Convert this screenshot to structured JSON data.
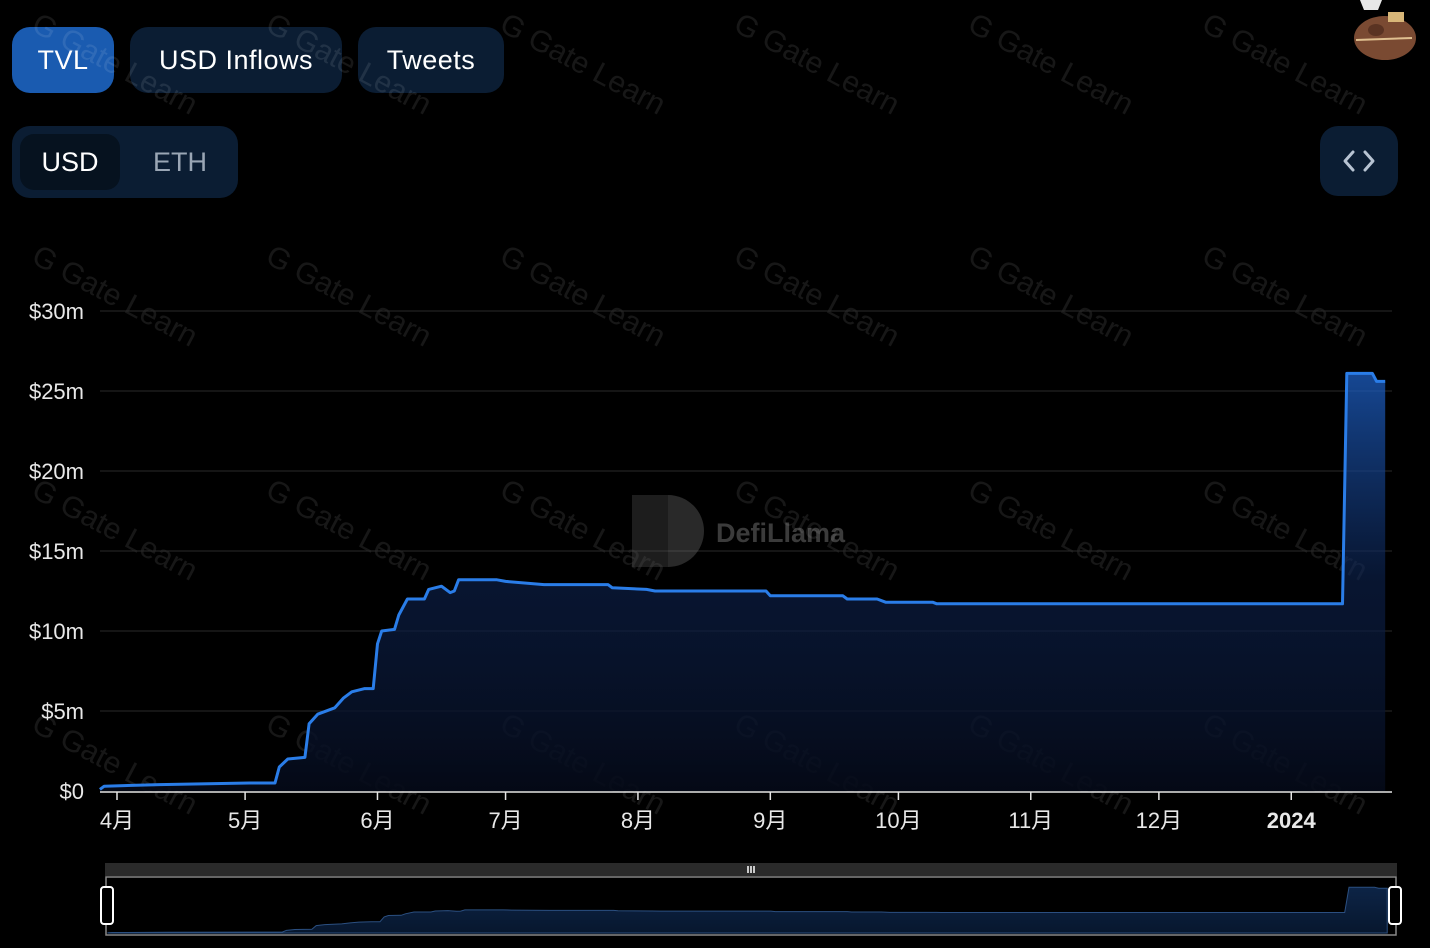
{
  "tabs": [
    {
      "label": "TVL",
      "active": true
    },
    {
      "label": "USD Inflows",
      "active": false
    },
    {
      "label": "Tweets",
      "active": false
    }
  ],
  "denomination": {
    "options": [
      "USD",
      "ETH"
    ],
    "selected": "USD"
  },
  "embed_icon": "code-brackets-icon",
  "avatar_icon": "user-avatar-icon",
  "watermarks": {
    "logo": "DefiLlama",
    "repeat": "Gate Learn"
  },
  "colors": {
    "accent": "#1f6fd6",
    "line": "#2a7de8",
    "panel": "#0b1d33",
    "tab_active": "#1a5bb0"
  },
  "chart_data": {
    "type": "area",
    "title": "",
    "xlabel": "",
    "ylabel": "",
    "yticks": [
      "$0",
      "$5m",
      "$10m",
      "$15m",
      "$20m",
      "$25m",
      "$30m"
    ],
    "ytick_values": [
      0,
      5,
      10,
      15,
      20,
      25,
      30
    ],
    "ylim": [
      0,
      30
    ],
    "y_unit": "USD millions",
    "xticks": [
      {
        "label": "4月",
        "date": "2023-04-01"
      },
      {
        "label": "5月",
        "date": "2023-05-01"
      },
      {
        "label": "6月",
        "date": "2023-06-01"
      },
      {
        "label": "7月",
        "date": "2023-07-01"
      },
      {
        "label": "8月",
        "date": "2023-08-01"
      },
      {
        "label": "9月",
        "date": "2023-09-01"
      },
      {
        "label": "10月",
        "date": "2023-10-01"
      },
      {
        "label": "11月",
        "date": "2023-11-01"
      },
      {
        "label": "12月",
        "date": "2023-12-01"
      },
      {
        "label": "2024",
        "date": "2024-01-01",
        "bold": true
      }
    ],
    "grid": true,
    "series": [
      {
        "points": [
          [
            "2023-03-28",
            0.1
          ],
          [
            "2023-03-29",
            0.3
          ],
          [
            "2023-04-11",
            0.4
          ],
          [
            "2023-05-02",
            0.5
          ],
          [
            "2023-05-08",
            0.5
          ],
          [
            "2023-05-09",
            1.5
          ],
          [
            "2023-05-11",
            2.0
          ],
          [
            "2023-05-15",
            2.1
          ],
          [
            "2023-05-16",
            4.2
          ],
          [
            "2023-05-18",
            4.8
          ],
          [
            "2023-05-22",
            5.2
          ],
          [
            "2023-05-24",
            5.8
          ],
          [
            "2023-05-26",
            6.2
          ],
          [
            "2023-05-29",
            6.4
          ],
          [
            "2023-05-31",
            6.4
          ],
          [
            "2023-06-01",
            9.2
          ],
          [
            "2023-06-02",
            10.0
          ],
          [
            "2023-06-05",
            10.1
          ],
          [
            "2023-06-06",
            11.0
          ],
          [
            "2023-06-08",
            12.0
          ],
          [
            "2023-06-12",
            12.0
          ],
          [
            "2023-06-13",
            12.6
          ],
          [
            "2023-06-16",
            12.8
          ],
          [
            "2023-06-18",
            12.4
          ],
          [
            "2023-06-19",
            12.5
          ],
          [
            "2023-06-20",
            13.2
          ],
          [
            "2023-06-29",
            13.2
          ],
          [
            "2023-07-01",
            13.1
          ],
          [
            "2023-07-10",
            12.9
          ],
          [
            "2023-07-25",
            12.9
          ],
          [
            "2023-07-26",
            12.7
          ],
          [
            "2023-08-03",
            12.6
          ],
          [
            "2023-08-05",
            12.5
          ],
          [
            "2023-08-31",
            12.5
          ],
          [
            "2023-09-01",
            12.2
          ],
          [
            "2023-09-18",
            12.2
          ],
          [
            "2023-09-19",
            12.0
          ],
          [
            "2023-09-26",
            12.0
          ],
          [
            "2023-09-28",
            11.8
          ],
          [
            "2023-10-09",
            11.8
          ],
          [
            "2023-10-10",
            11.7
          ],
          [
            "2024-01-13",
            11.7
          ],
          [
            "2024-01-14",
            26.1
          ],
          [
            "2024-01-20",
            26.1
          ],
          [
            "2024-01-21",
            25.6
          ],
          [
            "2024-01-23",
            25.6
          ]
        ]
      }
    ],
    "brush": {
      "range": "full"
    }
  }
}
